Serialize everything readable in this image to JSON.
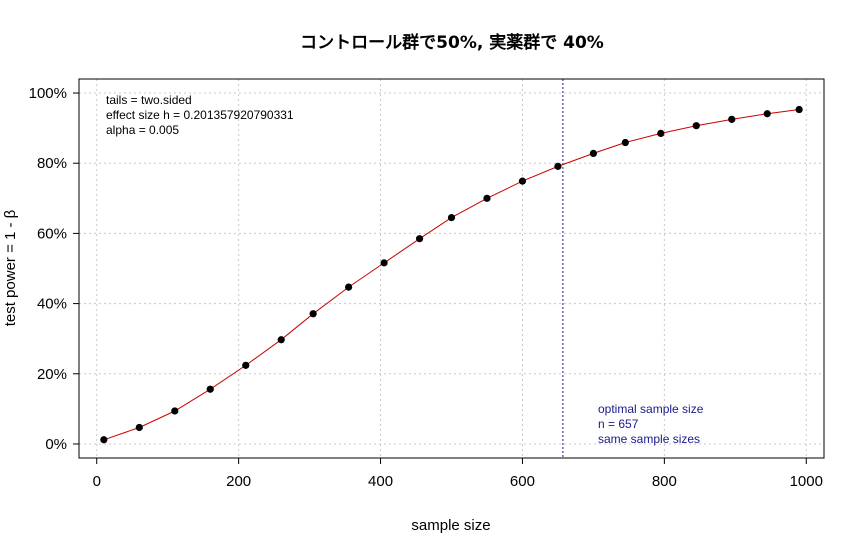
{
  "chart_data": {
    "type": "line",
    "title": "コントロール群で50%, 実薬群で 40%",
    "xlabel": "sample size",
    "ylabel": "test power = 1 - β",
    "xlim": [
      -25,
      1025
    ],
    "ylim": [
      -0.04,
      1.04
    ],
    "x_ticks": [
      0,
      200,
      400,
      600,
      800,
      1000
    ],
    "y_ticks": [
      0,
      0.2,
      0.4,
      0.6,
      0.8,
      1.0
    ],
    "x_tick_labels": [
      "0",
      "200",
      "400",
      "600",
      "800",
      "1000"
    ],
    "y_tick_labels": [
      "0%",
      "20%",
      "40%",
      "60%",
      "80%",
      "100%"
    ],
    "grid": true,
    "line_color": "#cc0000",
    "point_color": "#000000",
    "points": [
      {
        "x": 10,
        "y": 0.012
      },
      {
        "x": 60,
        "y": 0.047
      },
      {
        "x": 110,
        "y": 0.094
      },
      {
        "x": 160,
        "y": 0.156
      },
      {
        "x": 210,
        "y": 0.224
      },
      {
        "x": 260,
        "y": 0.297
      },
      {
        "x": 305,
        "y": 0.371
      },
      {
        "x": 355,
        "y": 0.447
      },
      {
        "x": 405,
        "y": 0.516
      },
      {
        "x": 455,
        "y": 0.585
      },
      {
        "x": 500,
        "y": 0.645
      },
      {
        "x": 550,
        "y": 0.7
      },
      {
        "x": 600,
        "y": 0.749
      },
      {
        "x": 650,
        "y": 0.791
      },
      {
        "x": 700,
        "y": 0.828
      },
      {
        "x": 745,
        "y": 0.859
      },
      {
        "x": 795,
        "y": 0.885
      },
      {
        "x": 845,
        "y": 0.907
      },
      {
        "x": 895,
        "y": 0.925
      },
      {
        "x": 945,
        "y": 0.941
      },
      {
        "x": 990,
        "y": 0.953
      }
    ],
    "optimal_n": 657,
    "optimal_line_color": "#1a1a8c",
    "params_text": [
      "tails = two.sided",
      "effect size h = 0.201357920790331",
      "alpha = 0.005"
    ],
    "annotation_text": [
      "optimal sample size",
      "n = 657",
      "same sample sizes"
    ]
  }
}
